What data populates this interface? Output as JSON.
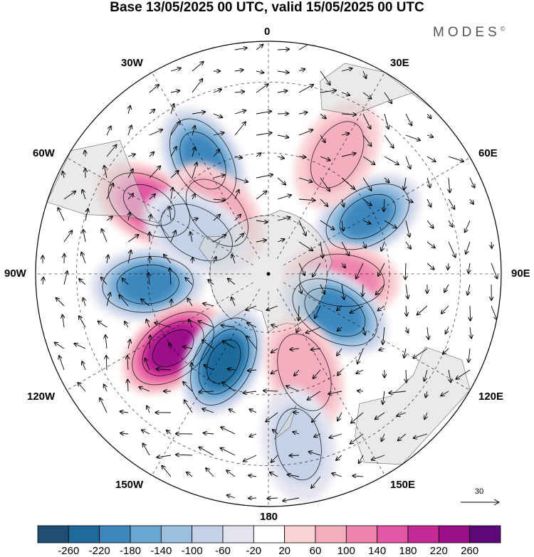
{
  "title": "Base 13/05/2025 00 UTC, valid 15/05/2025 00 UTC",
  "brand": "MODES",
  "brand_mark": "©",
  "projection": "south-polar-stereographic",
  "longitude_labels": {
    "top": "0",
    "bottom": "180",
    "left": "90W",
    "right": "90E",
    "upper_left_1": "30W",
    "upper_left_2": "60W",
    "upper_right_1": "30E",
    "upper_right_2": "60E",
    "lower_left_1": "120W",
    "lower_left_2": "150W",
    "lower_right_1": "120E",
    "lower_right_2": "150E"
  },
  "vector_scale_label": "30",
  "colorbar": {
    "colors": [
      "#1f4d73",
      "#1f6a9a",
      "#3d87bd",
      "#6ba6d1",
      "#9cc0e0",
      "#c4d2e8",
      "#e4e4f0",
      "#ffffff",
      "#f9d2d6",
      "#f4aebd",
      "#ee84ad",
      "#e356a3",
      "#c42995",
      "#9b1089",
      "#5e087a"
    ],
    "labels": [
      "-260",
      "-220",
      "-180",
      "-140",
      "-100",
      "-60",
      "-20",
      "20",
      "60",
      "100",
      "140",
      "180",
      "220",
      "260"
    ],
    "land_color": "#d9d9d9"
  },
  "anomaly_centers": [
    {
      "lon": -60,
      "lat": -45,
      "value": 160
    },
    {
      "lon": -30,
      "lat": -47,
      "value": -190
    },
    {
      "lon": -95,
      "lat": -50,
      "value": -190
    },
    {
      "lon": -128,
      "lat": -50,
      "value": 240
    },
    {
      "lon": -153,
      "lat": -57,
      "value": -240
    },
    {
      "lon": 60,
      "lat": -52,
      "value": -180
    },
    {
      "lon": 95,
      "lat": -65,
      "value": 120
    },
    {
      "lon": 120,
      "lat": -64,
      "value": -210
    },
    {
      "lon": 160,
      "lat": -55,
      "value": 90
    },
    {
      "lon": 30,
      "lat": -45,
      "value": 60
    },
    {
      "lon": -40,
      "lat": -63,
      "value": 80
    },
    {
      "lon": -60,
      "lat": -62,
      "value": -80
    },
    {
      "lon": 170,
      "lat": -35,
      "value": -60
    }
  ]
}
